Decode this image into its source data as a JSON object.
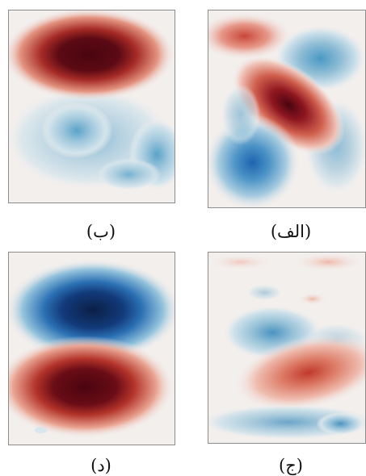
{
  "figure": {
    "panels": [
      {
        "id": "alef",
        "label": "(الف)",
        "colormap": "red-white-blue diverging",
        "features": [
          "red lobe top-left",
          "dark red diagonal core",
          "blue lobe top-right",
          "blue lobe bottom-left"
        ]
      },
      {
        "id": "be",
        "label": "(ب)",
        "colormap": "red-white-blue diverging",
        "features": [
          "dark red ellipse top",
          "light blue region bottom"
        ]
      },
      {
        "id": "jim",
        "label": "(ج)",
        "colormap": "red-white-blue diverging",
        "features": [
          "faint red band top",
          "blue lobe upper-middle",
          "red lobe middle-right",
          "blue band bottom"
        ]
      },
      {
        "id": "dal",
        "label": "(د)",
        "colormap": "red-white-blue diverging",
        "features": [
          "dark blue ellipse top",
          "dark red ellipse bottom"
        ]
      }
    ],
    "colors": {
      "deep_red": "#4a0510",
      "red": "#c0392b",
      "light_red": "#f2c6bd",
      "neutral": "#f3efed",
      "light_blue": "#c4dbe6",
      "blue": "#3f8fbf",
      "deep_blue": "#0a2a5e"
    }
  }
}
